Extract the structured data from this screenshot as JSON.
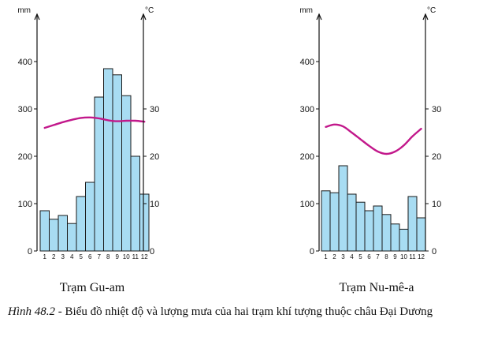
{
  "caption": {
    "label": "Hình 48.2",
    "text": " - Biểu đồ nhiệt độ và lượng mưa của hai trạm khí tượng thuộc châu Đại Dương"
  },
  "chart_data": [
    {
      "type": "bar",
      "title": "Trạm Gu-am",
      "left_unit": "mm",
      "right_unit": "°C",
      "categories": [
        "1",
        "2",
        "3",
        "4",
        "5",
        "6",
        "7",
        "8",
        "9",
        "10",
        "11",
        "12"
      ],
      "precip_ylim": [
        0,
        400
      ],
      "precip_ticks": [
        0,
        100,
        200,
        300,
        400
      ],
      "temp_ylim": [
        0,
        40
      ],
      "temp_ticks": [
        0,
        10,
        20,
        30
      ],
      "series": [
        {
          "values": [
            85,
            67,
            75,
            58,
            115,
            145,
            325,
            385,
            372,
            328,
            200,
            120
          ],
          "color": "#a8dcf2"
        },
        {
          "values": [
            26,
            26.6,
            27.2,
            27.7,
            28.1,
            28.2,
            28,
            27.6,
            27.4,
            27.5,
            27.5,
            27.3
          ],
          "color": "#c2188b"
        }
      ]
    },
    {
      "type": "bar",
      "title": "Trạm Nu-mê-a",
      "left_unit": "mm",
      "right_unit": "°C",
      "categories": [
        "1",
        "2",
        "3",
        "4",
        "5",
        "6",
        "7",
        "8",
        "9",
        "10",
        "11",
        "12"
      ],
      "precip_ylim": [
        0,
        400
      ],
      "precip_ticks": [
        0,
        100,
        200,
        300,
        400
      ],
      "temp_ylim": [
        0,
        40
      ],
      "temp_ticks": [
        0,
        10,
        20,
        30
      ],
      "series": [
        {
          "values": [
            127,
            123,
            180,
            120,
            103,
            85,
            95,
            77,
            57,
            46,
            115,
            70
          ],
          "color": "#a8dcf2"
        },
        {
          "values": [
            26.2,
            26.7,
            26.3,
            25,
            23.6,
            22.2,
            21,
            20.5,
            21,
            22.3,
            24.2,
            25.8
          ],
          "color": "#c2188b"
        }
      ]
    }
  ]
}
